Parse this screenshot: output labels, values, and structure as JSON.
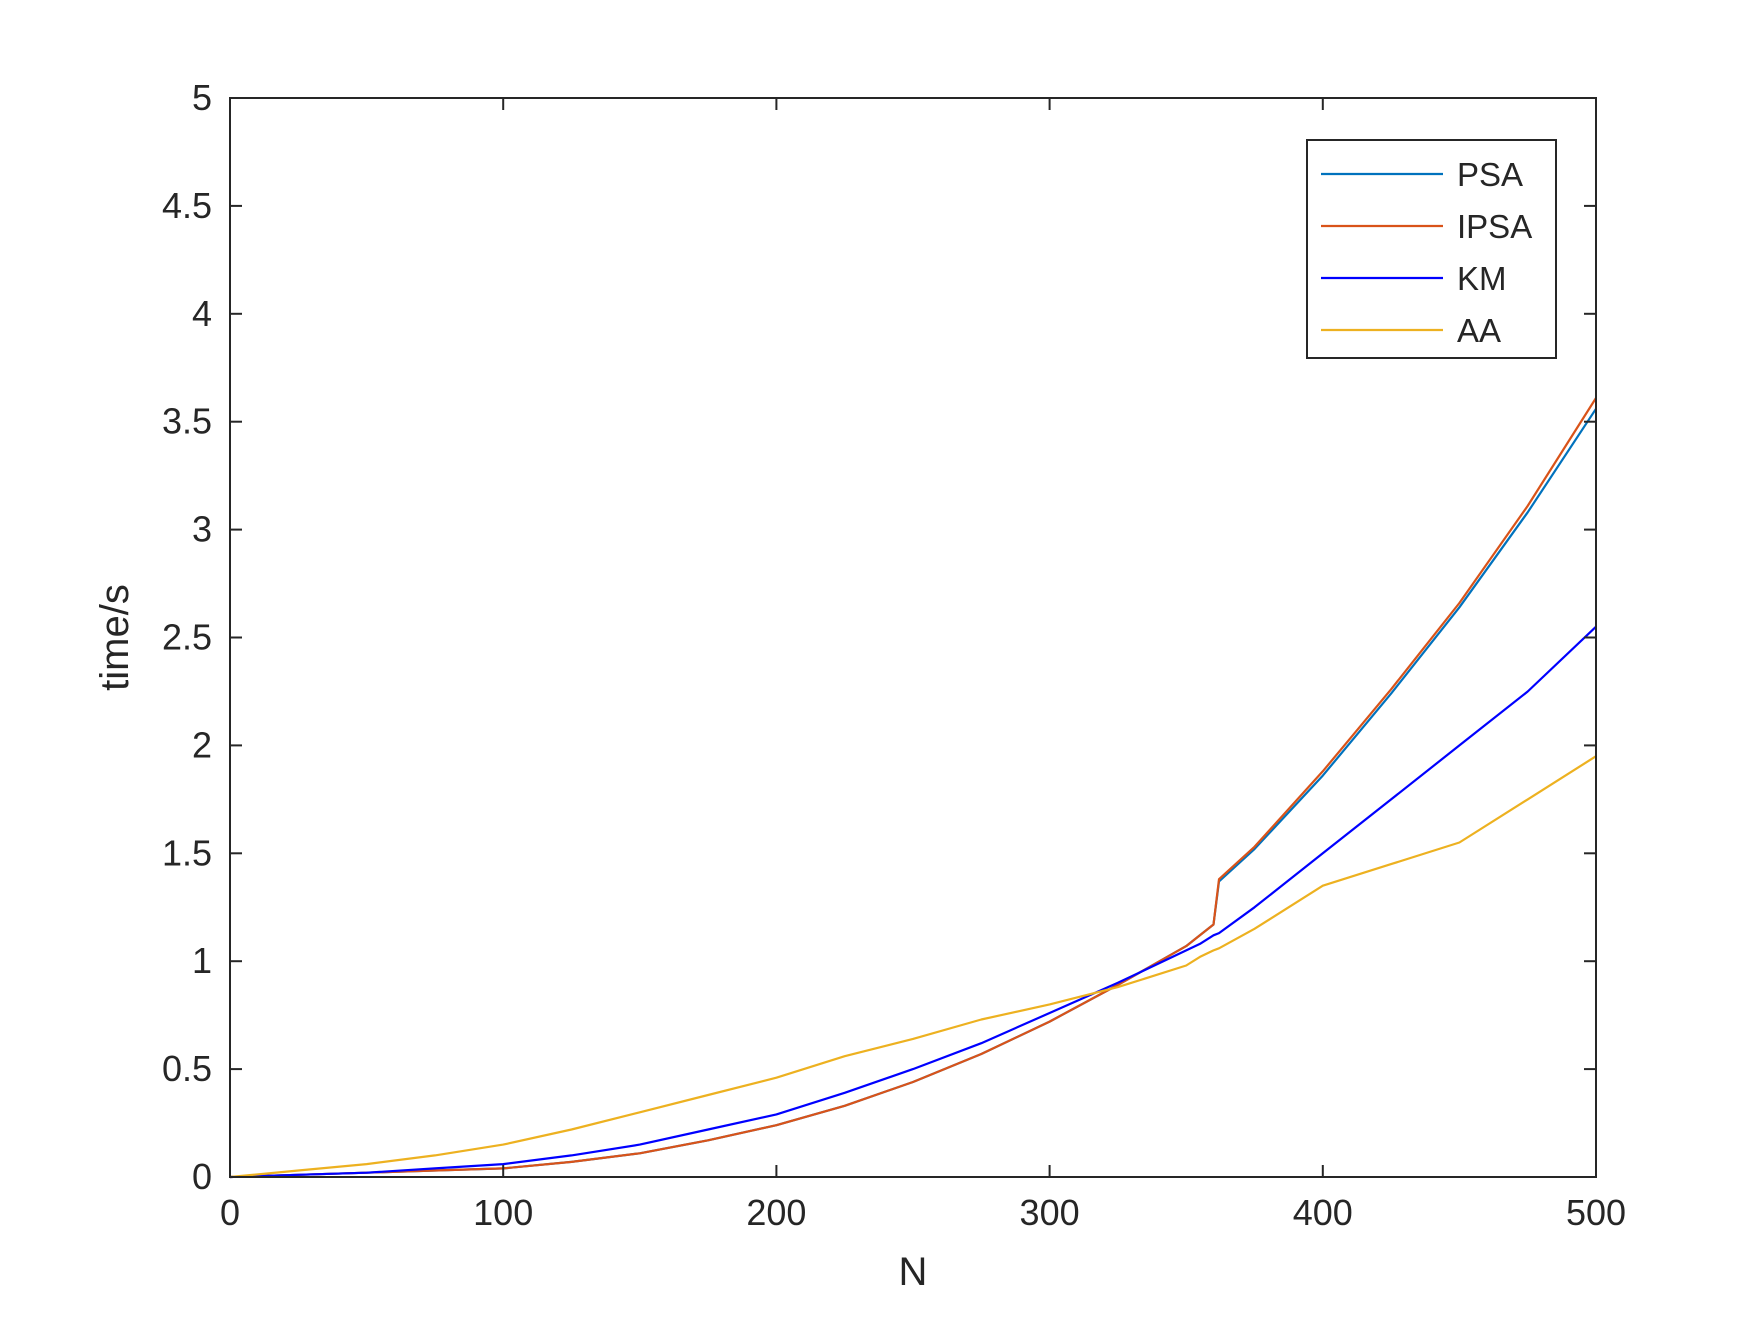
{
  "chart_data": {
    "type": "line",
    "xlabel": "N",
    "ylabel": "time/s",
    "xlim": [
      0,
      500
    ],
    "ylim": [
      0,
      5
    ],
    "xticks": [
      0,
      100,
      200,
      300,
      400,
      500
    ],
    "yticks": [
      0,
      0.5,
      1,
      1.5,
      2,
      2.5,
      3,
      3.5,
      4,
      4.5,
      5
    ],
    "xtick_labels": [
      "0",
      "100",
      "200",
      "300",
      "400",
      "500"
    ],
    "ytick_labels": [
      "0",
      "0.5",
      "1",
      "1.5",
      "2",
      "2.5",
      "3",
      "3.5",
      "4",
      "4.5",
      "5"
    ],
    "grid": false,
    "legend_position": "top-right",
    "x": [
      0,
      25,
      50,
      75,
      100,
      125,
      150,
      175,
      200,
      225,
      250,
      275,
      300,
      325,
      350,
      355,
      360,
      362,
      375,
      400,
      425,
      450,
      475,
      500
    ],
    "series": [
      {
        "name": "PSA",
        "color": "#0072BD",
        "values": [
          0.0,
          0.01,
          0.02,
          0.03,
          0.04,
          0.07,
          0.11,
          0.17,
          0.24,
          0.33,
          0.44,
          0.57,
          0.72,
          0.89,
          1.07,
          1.12,
          1.17,
          1.37,
          1.52,
          1.86,
          2.24,
          2.64,
          3.08,
          3.56
        ]
      },
      {
        "name": "IPSA",
        "color": "#D95319",
        "values": [
          0.0,
          0.01,
          0.02,
          0.03,
          0.04,
          0.07,
          0.11,
          0.17,
          0.24,
          0.33,
          0.44,
          0.57,
          0.72,
          0.89,
          1.07,
          1.12,
          1.17,
          1.38,
          1.53,
          1.88,
          2.26,
          2.66,
          3.11,
          3.61
        ]
      },
      {
        "name": "KM",
        "color": "#0000FF",
        "values": [
          0.0,
          0.01,
          0.02,
          0.04,
          0.06,
          0.1,
          0.15,
          0.22,
          0.29,
          0.39,
          0.5,
          0.62,
          0.76,
          0.9,
          1.05,
          1.08,
          1.12,
          1.13,
          1.25,
          1.5,
          1.75,
          2.0,
          2.25,
          2.55
        ]
      },
      {
        "name": "AA",
        "color": "#EDB120",
        "values": [
          0.0,
          0.03,
          0.06,
          0.1,
          0.15,
          0.22,
          0.3,
          0.38,
          0.46,
          0.56,
          0.64,
          0.73,
          0.8,
          0.88,
          0.98,
          1.02,
          1.05,
          1.06,
          1.15,
          1.35,
          1.45,
          1.55,
          1.75,
          1.95
        ]
      }
    ]
  }
}
